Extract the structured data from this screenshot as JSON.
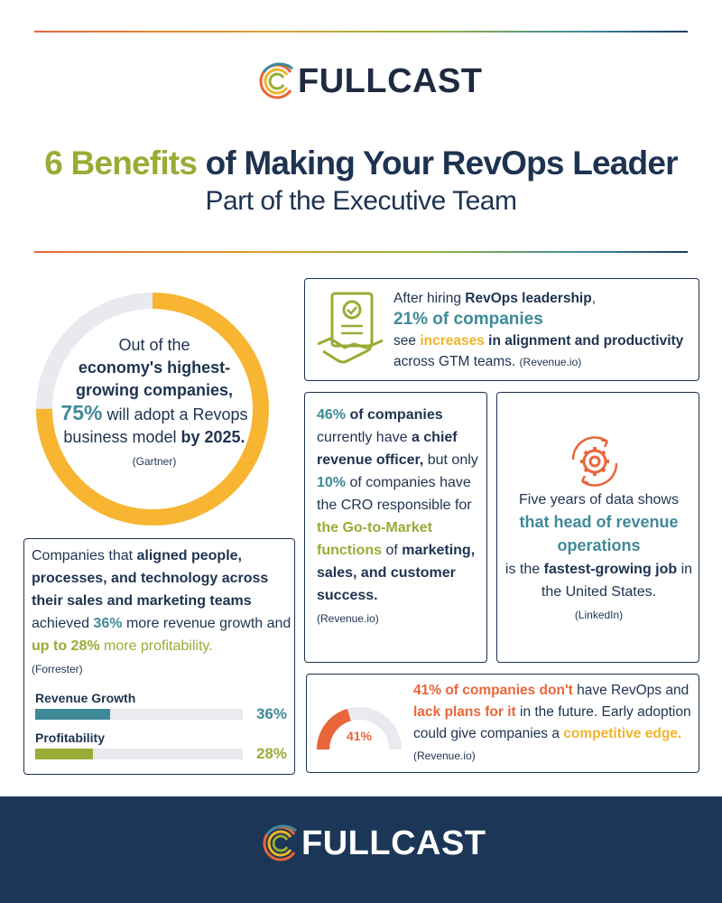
{
  "brand": {
    "name": "FULLCAST"
  },
  "title": {
    "accent": "6 Benefits",
    "rest": " of Making Your RevOps Leader"
  },
  "subtitle": "Part of the Executive Team",
  "stat_donut": {
    "line1": "Out of the",
    "bold1": "economy's highest-growing companies,",
    "percent": "75%",
    "line2": " will adopt a Revops business model ",
    "bold2": "by 2025.",
    "source": "(Gartner)",
    "value": 0.75
  },
  "card_revops": {
    "t1": "After hiring ",
    "b1": "RevOps leadership",
    "t2": ",",
    "big": "21% of companies",
    "t3": "see ",
    "gold": "increases",
    "b2": " in alignment and productivity",
    "t4": " across GTM teams. ",
    "source": "(Revenue.io)"
  },
  "card_cro": {
    "p1": "46%",
    "b1": " of companies",
    "t1": " currently have ",
    "b2": "a chief revenue officer,",
    "t2": " but only ",
    "p2": "10%",
    "t3": " of companies have the CRO responsible for ",
    "olive": "the Go-to-Market functions",
    "t4": " of ",
    "b3": "marketing, sales, and customer success.",
    "source": "(Revenue.io)"
  },
  "card_job": {
    "t1": "Five years of data shows",
    "teal": "that head of revenue operations",
    "t2": "is the ",
    "b1": "fastest-growing job",
    "t3": " in the United States.",
    "source": "(LinkedIn)"
  },
  "card_align": {
    "t1": "Companies that ",
    "b1": "aligned people, processes, and technology across their sales and marketing teams",
    "t2": " achieved ",
    "p1": "36%",
    "t3": " more revenue growth and ",
    "p2": "up to 28%",
    "t4": " more profitability.",
    "source": "(Forrester)"
  },
  "chart_data": {
    "type": "bar",
    "categories": [
      "Revenue Growth",
      "Profitability"
    ],
    "values": [
      36,
      28
    ],
    "value_labels": [
      "36%",
      "28%"
    ],
    "colors": [
      "#3f8a98",
      "#97ad35"
    ],
    "ylim": [
      0,
      100
    ]
  },
  "card_adoption": {
    "gauge_label": "41%",
    "gauge_value": 0.41,
    "o1": "41% of companies",
    "o2": " don't",
    "t1": " have RevOps and ",
    "o3": "lack plans for it",
    "t2": " in the future. Early adoption could give companies a ",
    "gold": "competitive edge.",
    "source": " (Revenue.io)"
  }
}
